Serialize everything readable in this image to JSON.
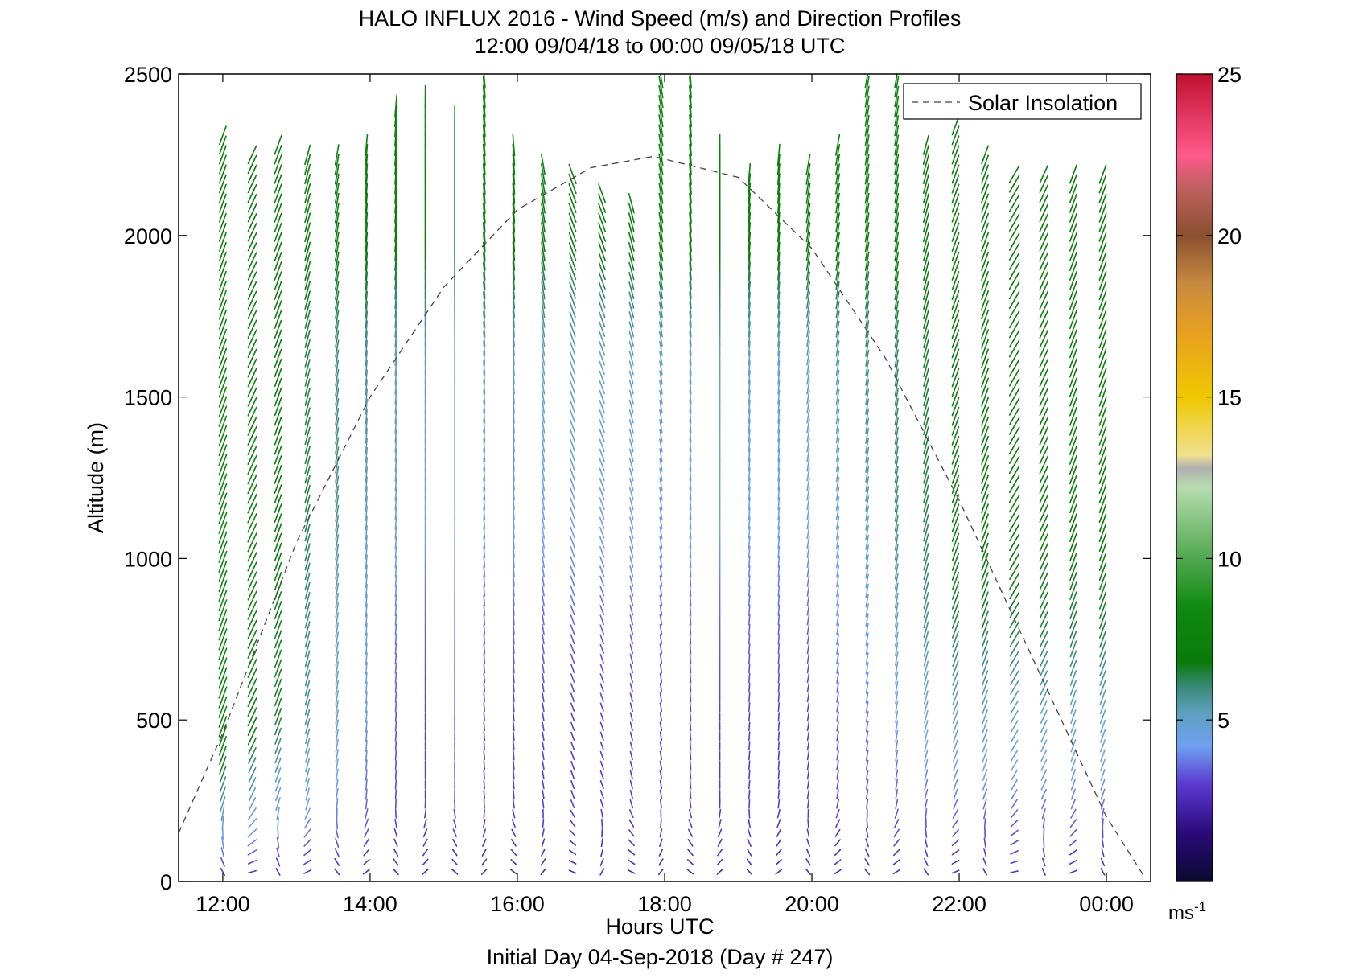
{
  "chart_data": {
    "type": "vector-field",
    "title": "HALO INFLUX 2016 - Wind Speed (m/s) and Direction Profiles",
    "subtitle": "12:00 09/04/18 to 00:00 09/05/18  UTC",
    "xlabel": "Hours UTC",
    "ylabel": "Altitude (m)",
    "footer": "Initial Day 04-Sep-2018 (Day # 247)",
    "xlim": [
      11.4,
      24.6
    ],
    "ylim": [
      0,
      2500
    ],
    "xticks": [
      {
        "value": 12,
        "label": "12:00"
      },
      {
        "value": 14,
        "label": "14:00"
      },
      {
        "value": 16,
        "label": "16:00"
      },
      {
        "value": 18,
        "label": "18:00"
      },
      {
        "value": 20,
        "label": "20:00"
      },
      {
        "value": 22,
        "label": "22:00"
      },
      {
        "value": 24,
        "label": "00:00"
      }
    ],
    "yticks": [
      0,
      500,
      1000,
      1500,
      2000,
      2500
    ],
    "grid": false,
    "legend": {
      "position": "top-right",
      "entries": [
        "Solar Insolation"
      ]
    },
    "colorbar": {
      "min": 0,
      "max": 25,
      "ticks": [
        5,
        10,
        15,
        20,
        25
      ],
      "unit": "ms-1"
    },
    "solar_insolation": {
      "style": "dashed",
      "x": [
        11.4,
        12,
        13,
        14,
        15,
        16,
        17,
        17.85,
        19,
        20,
        21,
        22,
        23,
        24,
        24.5
      ],
      "y": [
        150,
        460,
        1050,
        1500,
        1840,
        2080,
        2210,
        2245,
        2180,
        1960,
        1620,
        1180,
        690,
        200,
        20
      ]
    },
    "profiles_hours": [
      12.0,
      12.4,
      12.75,
      13.15,
      13.55,
      13.95,
      14.35,
      14.75,
      15.15,
      15.55,
      15.95,
      16.35,
      16.75,
      17.15,
      17.55,
      17.95,
      18.35,
      18.75,
      19.15,
      19.55,
      19.95,
      20.35,
      20.75,
      21.15,
      21.55,
      21.95,
      22.35,
      22.75,
      23.15,
      23.55,
      23.95
    ],
    "profiles_top_m": [
      2320,
      2250,
      2280,
      2260,
      2260,
      2300,
      2400,
      2450,
      2380,
      2500,
      2300,
      2220,
      2200,
      2150,
      2120,
      2500,
      2500,
      2300,
      2200,
      2260,
      2240,
      2280,
      2500,
      2500,
      2300,
      2350,
      2250,
      2200,
      2200,
      2200,
      2200
    ],
    "profiles_dir_deg": [
      200,
      205,
      200,
      195,
      190,
      185,
      185,
      180,
      180,
      175,
      175,
      170,
      160,
      160,
      165,
      170,
      175,
      180,
      185,
      185,
      190,
      190,
      190,
      190,
      195,
      200,
      200,
      210,
      205,
      200,
      200
    ],
    "speed_by_altitude": {
      "altitude_m": [
        0,
        200,
        500,
        800,
        1200,
        1600,
        2000,
        2400
      ],
      "speed_early_ms": [
        2.5,
        5,
        8,
        8,
        8,
        7.5,
        7,
        7
      ],
      "speed_midday_ms": [
        2.5,
        3,
        3,
        3.5,
        4.5,
        5,
        7,
        8
      ],
      "speed_late_ms": [
        2.5,
        3.5,
        5,
        6.5,
        7,
        7,
        7,
        7
      ]
    }
  },
  "colors": {
    "text": "#000000",
    "axes": "#000000",
    "insolation": "#444444",
    "colormap_stops": [
      {
        "v": 0.0,
        "c": "#0a0a30"
      },
      {
        "v": 1.5,
        "c": "#2a0a7a"
      },
      {
        "v": 3.0,
        "c": "#5a3ad0"
      },
      {
        "v": 4.2,
        "c": "#6fa0f0"
      },
      {
        "v": 5.2,
        "c": "#5fa0c0"
      },
      {
        "v": 6.0,
        "c": "#3a8a7a"
      },
      {
        "v": 6.8,
        "c": "#0a7a0a"
      },
      {
        "v": 8.5,
        "c": "#108a10"
      },
      {
        "v": 10.0,
        "c": "#50a850"
      },
      {
        "v": 12.2,
        "c": "#b8dcb0"
      },
      {
        "v": 12.8,
        "c": "#b0b0b0"
      },
      {
        "v": 13.2,
        "c": "#f0e090"
      },
      {
        "v": 15.0,
        "c": "#f0c800"
      },
      {
        "v": 17.0,
        "c": "#e8a020"
      },
      {
        "v": 18.5,
        "c": "#c88a40"
      },
      {
        "v": 20.0,
        "c": "#8a5030"
      },
      {
        "v": 21.5,
        "c": "#c06060"
      },
      {
        "v": 22.5,
        "c": "#ff5a8a"
      },
      {
        "v": 25.0,
        "c": "#c01030"
      }
    ]
  }
}
